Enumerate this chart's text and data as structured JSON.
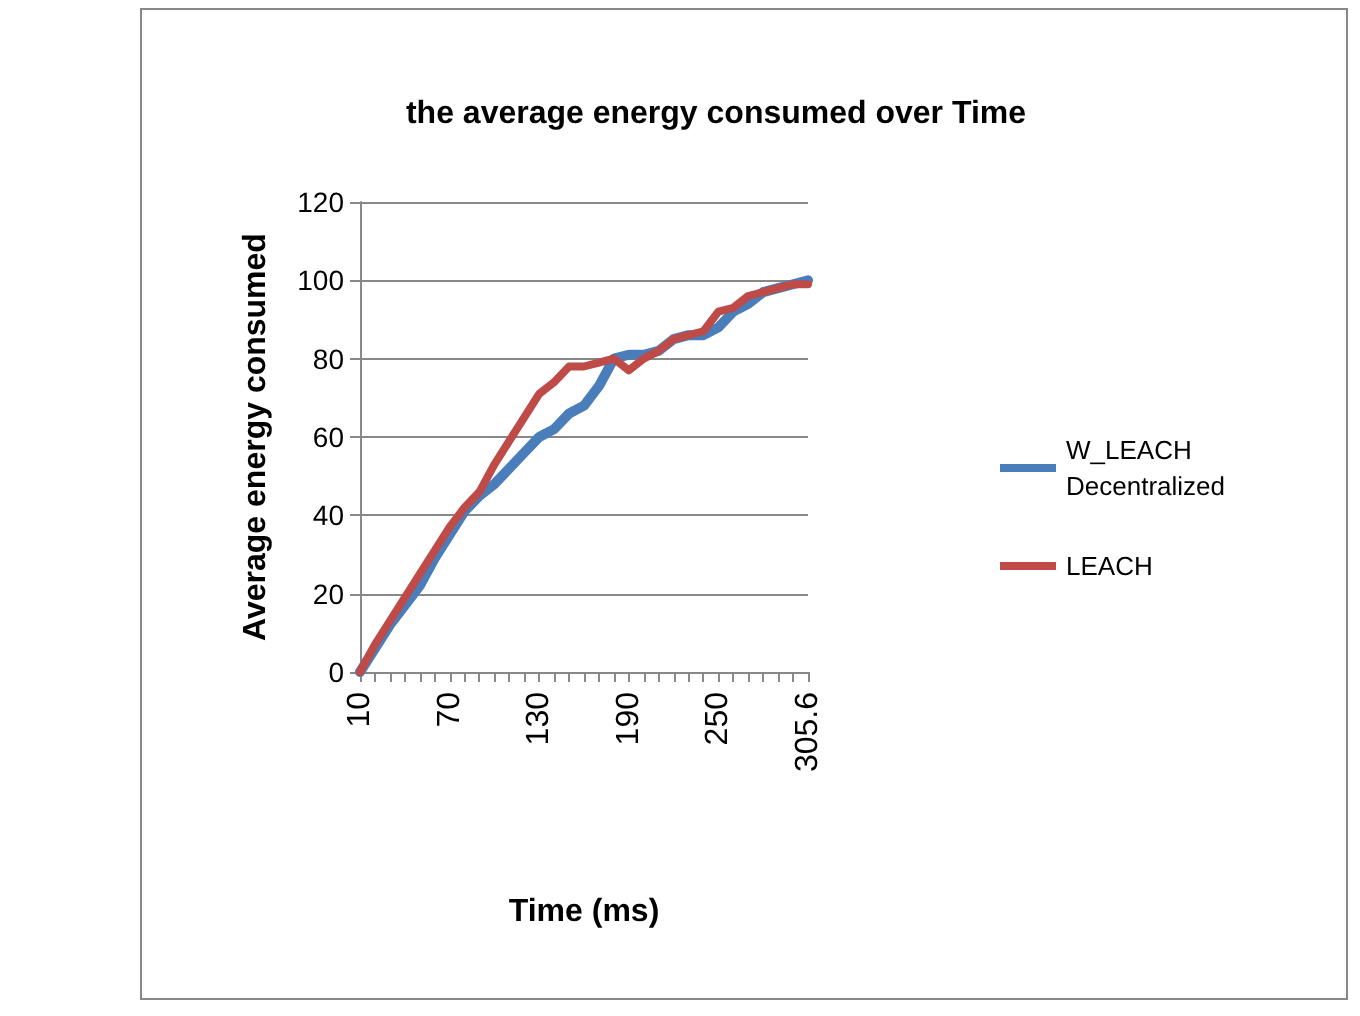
{
  "chart_data": {
    "type": "line",
    "title": "the average energy consumed over Time",
    "xlabel": "Time (ms)",
    "ylabel": "Average energy consumed",
    "categories": [
      "10",
      null,
      null,
      null,
      null,
      null,
      "70",
      null,
      null,
      null,
      null,
      null,
      "130",
      null,
      null,
      null,
      null,
      null,
      "190",
      null,
      null,
      null,
      null,
      null,
      "250",
      null,
      null,
      null,
      null,
      null,
      "305.6"
    ],
    "series": [
      {
        "name": "W_LEACH Decentralized",
        "color": "#4a7ebb",
        "values": [
          0,
          6,
          12,
          17,
          22,
          29,
          35,
          41,
          45,
          48,
          52,
          56,
          60,
          62,
          66,
          68,
          73,
          80,
          81,
          81,
          82,
          85,
          86,
          86,
          88,
          92,
          94,
          97,
          98,
          99,
          100
        ]
      },
      {
        "name": "LEACH",
        "color": "#be4b48",
        "values": [
          0,
          7,
          13,
          19,
          25,
          31,
          37,
          42,
          46,
          53,
          59,
          65,
          71,
          74,
          78,
          78,
          79,
          80,
          77,
          80,
          82,
          85,
          86,
          87,
          92,
          93,
          96,
          97,
          98,
          99,
          99
        ]
      }
    ],
    "ylim": [
      0,
      120
    ],
    "yticks": [
      0,
      20,
      40,
      60,
      80,
      100,
      120
    ],
    "grid": "y",
    "legend": "right",
    "marker": "none",
    "line_style": "solid"
  }
}
